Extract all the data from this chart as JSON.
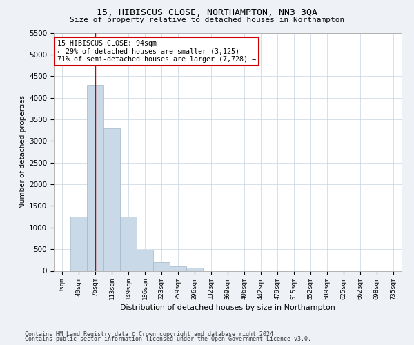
{
  "title1": "15, HIBISCUS CLOSE, NORTHAMPTON, NN3 3QA",
  "title2": "Size of property relative to detached houses in Northampton",
  "xlabel": "Distribution of detached houses by size in Northampton",
  "ylabel": "Number of detached properties",
  "categories": [
    "3sqm",
    "40sqm",
    "76sqm",
    "113sqm",
    "149sqm",
    "186sqm",
    "223sqm",
    "259sqm",
    "296sqm",
    "332sqm",
    "369sqm",
    "406sqm",
    "442sqm",
    "479sqm",
    "515sqm",
    "552sqm",
    "589sqm",
    "625sqm",
    "662sqm",
    "698sqm",
    "735sqm"
  ],
  "values": [
    0,
    1250,
    4300,
    3300,
    1250,
    480,
    200,
    100,
    70,
    0,
    0,
    0,
    0,
    0,
    0,
    0,
    0,
    0,
    0,
    0,
    0
  ],
  "bar_color": "#c9d9e8",
  "bar_edge_color": "#a0b8cc",
  "vline_x_index": 2.0,
  "vline_color": "#cc0000",
  "annotation_line1": "15 HIBISCUS CLOSE: 94sqm",
  "annotation_line2": "← 29% of detached houses are smaller (3,125)",
  "annotation_line3": "71% of semi-detached houses are larger (7,728) →",
  "annotation_box_color": "#ffffff",
  "annotation_box_edge_color": "#cc0000",
  "ylim": [
    0,
    5500
  ],
  "yticks": [
    0,
    500,
    1000,
    1500,
    2000,
    2500,
    3000,
    3500,
    4000,
    4500,
    5000,
    5500
  ],
  "footer1": "Contains HM Land Registry data © Crown copyright and database right 2024.",
  "footer2": "Contains public sector information licensed under the Open Government Licence v3.0.",
  "background_color": "#eef2f7",
  "plot_background_color": "#ffffff",
  "grid_color": "#c8d4e0"
}
